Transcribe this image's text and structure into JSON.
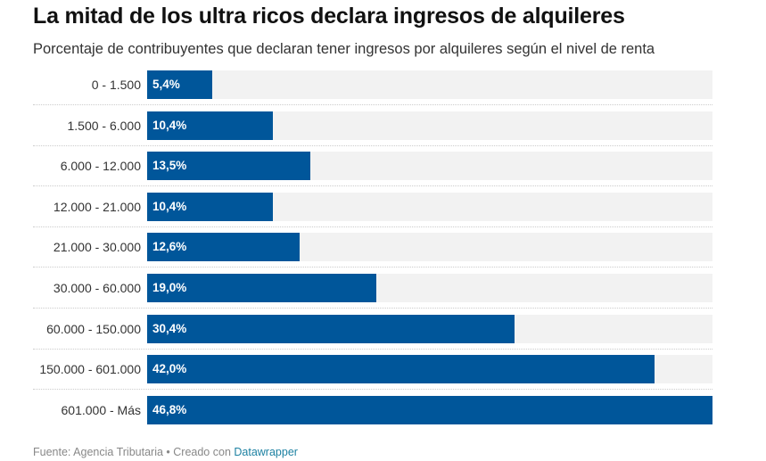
{
  "header": {
    "title": "La mitad de los ultra ricos declara ingresos de alquileres",
    "subtitle": "Porcentaje de contribuyentes que declaran tener ingresos por alquileres según el nivel de renta"
  },
  "footer": {
    "source_label": "Fuente: Agencia Tributaria",
    "separator": " • ",
    "created_label": "Creado con ",
    "link_text": "Datawrapper"
  },
  "colors": {
    "bar": "#00569a",
    "bar_background": "#f2f2f2",
    "link": "#1d81a2"
  },
  "chart_data": {
    "type": "bar",
    "orientation": "horizontal",
    "title": "La mitad de los ultra ricos declara ingresos de alquileres",
    "subtitle": "Porcentaje de contribuyentes que declaran tener ingresos por alquileres según el nivel de renta",
    "xlabel": "",
    "ylabel": "",
    "categories": [
      "0 - 1.500",
      "1.500 - 6.000",
      "6.000 - 12.000",
      "12.000 - 21.000",
      "21.000 - 30.000",
      "30.000 - 60.000",
      "60.000 - 150.000",
      "150.000 - 601.000",
      "601.000 - Más"
    ],
    "values": [
      5.4,
      10.4,
      13.5,
      10.4,
      12.6,
      19.0,
      30.4,
      42.0,
      46.8
    ],
    "value_labels": [
      "5,4%",
      "10,4%",
      "13,5%",
      "10,4%",
      "12,6%",
      "19,0%",
      "30,4%",
      "42,0%",
      "46,8%"
    ],
    "xlim": [
      0,
      46.8
    ],
    "grid": false,
    "legend": "none"
  }
}
